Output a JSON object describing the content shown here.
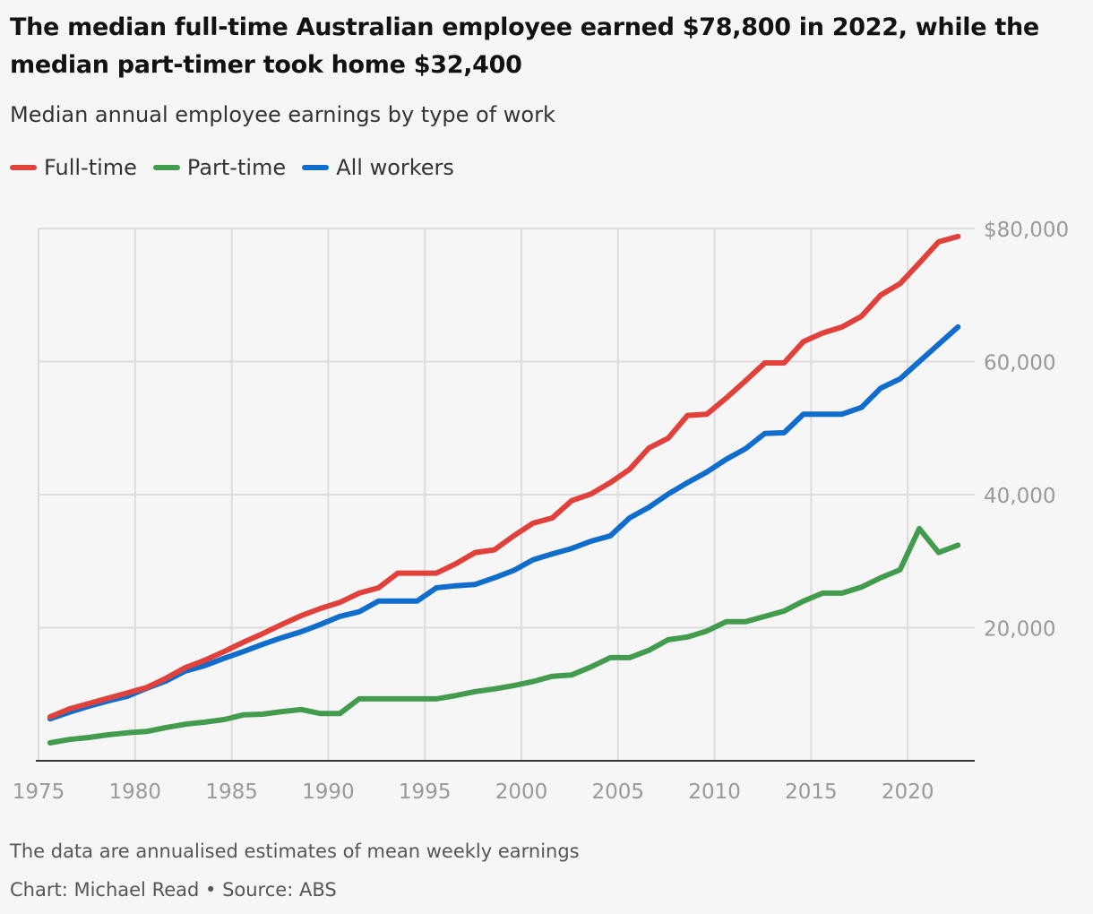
{
  "title": "The median full-time Australian employee earned $78,800 in 2022, while the median part-timer took home $32,400",
  "subtitle": "Median annual employee earnings by type of work",
  "note": "The data are annualised estimates of mean weekly earnings",
  "credit": "Chart: Michael Read • Source: ABS",
  "chart_data": {
    "type": "line",
    "legend_position": "top-left",
    "grid": true,
    "xlim": [
      1975,
      2023
    ],
    "ylim": [
      0,
      80000
    ],
    "x_ticks": [
      "1975",
      "1980",
      "1985",
      "1990",
      "1995",
      "2000",
      "2005",
      "2010",
      "2015",
      "2020"
    ],
    "y_ticks": [
      {
        "value": 20000,
        "label": "20,000"
      },
      {
        "value": 40000,
        "label": "40,000"
      },
      {
        "value": 60000,
        "label": "60,000"
      },
      {
        "value": 80000,
        "label": "$80,000"
      }
    ],
    "y_axis_side": "right",
    "x": [
      1975,
      1976,
      1977,
      1978,
      1979,
      1980,
      1981,
      1982,
      1983,
      1984,
      1985,
      1986,
      1987,
      1988,
      1989,
      1990,
      1991,
      1992,
      1993,
      1994,
      1995,
      1996,
      1997,
      1998,
      1999,
      2000,
      2001,
      2002,
      2003,
      2004,
      2005,
      2006,
      2007,
      2008,
      2009,
      2010,
      2011,
      2012,
      2013,
      2014,
      2015,
      2016,
      2017,
      2018,
      2019,
      2020,
      2021,
      2022
    ],
    "series": [
      {
        "name": "Full-time",
        "color": "#e0413a",
        "values": [
          6600,
          7800,
          8600,
          9400,
          10200,
          11000,
          12400,
          14000,
          15100,
          16400,
          17800,
          19100,
          20500,
          21800,
          22900,
          23800,
          25200,
          26000,
          28200,
          28200,
          28200,
          29600,
          31300,
          31700,
          33800,
          35700,
          36500,
          39100,
          40100,
          41800,
          43800,
          47000,
          48500,
          51900,
          52100,
          54500,
          57100,
          59800,
          59800,
          63000,
          64300,
          65200,
          66800,
          70000,
          71700,
          74800,
          78000,
          78800
        ]
      },
      {
        "name": "Part-time",
        "color": "#439c4d",
        "values": [
          2700,
          3200,
          3500,
          3900,
          4200,
          4400,
          5000,
          5500,
          5800,
          6200,
          6900,
          7000,
          7400,
          7700,
          7100,
          7100,
          9300,
          9300,
          9300,
          9300,
          9300,
          9800,
          10400,
          10800,
          11300,
          11900,
          12700,
          12900,
          14100,
          15500,
          15500,
          16600,
          18200,
          18600,
          19500,
          20900,
          20900,
          21700,
          22500,
          24000,
          25200,
          25200,
          26100,
          27500,
          28700,
          34900,
          31300,
          32400
        ]
      },
      {
        "name": "All workers",
        "color": "#116dcc",
        "values": [
          6300,
          7300,
          8200,
          9000,
          9700,
          10900,
          12000,
          13500,
          14300,
          15400,
          16400,
          17500,
          18500,
          19400,
          20500,
          21700,
          22400,
          24000,
          24000,
          24000,
          26000,
          26300,
          26500,
          27500,
          28600,
          30200,
          31100,
          31900,
          33000,
          33800,
          36500,
          38100,
          40100,
          41800,
          43400,
          45300,
          46900,
          49200,
          49300,
          52100,
          52100,
          52100,
          53100,
          56000,
          57400,
          60000,
          62600,
          65200
        ]
      }
    ]
  }
}
